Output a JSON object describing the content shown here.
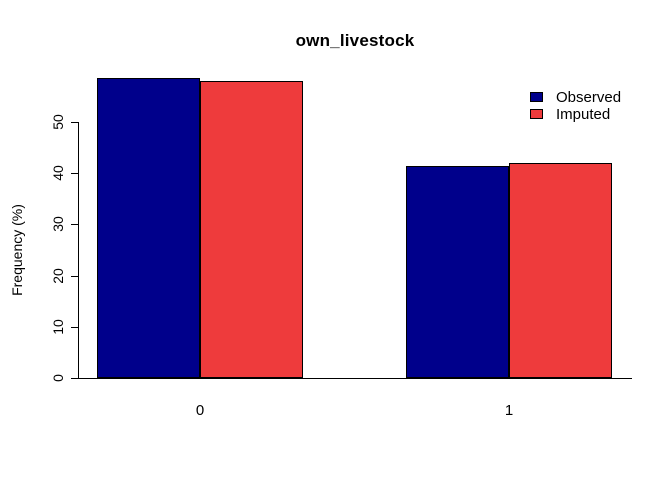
{
  "chart_data": {
    "type": "bar",
    "title": "own_livestock",
    "xlabel": "",
    "ylabel": "Frequency (%)",
    "categories": [
      "0",
      "1"
    ],
    "series": [
      {
        "name": "Observed",
        "color": "#00008b",
        "values": [
          58.5,
          41.5
        ]
      },
      {
        "name": "Imputed",
        "color": "#ee3b3c",
        "values": [
          58.1,
          41.9
        ]
      }
    ],
    "yticks": [
      0,
      10,
      20,
      30,
      40,
      50
    ],
    "ylim": [
      0,
      58.5
    ],
    "grid": false,
    "legend_position": "top-right",
    "bar_border_color": "#000000",
    "axis_color": "#000000",
    "background_color": "#ffffff"
  }
}
